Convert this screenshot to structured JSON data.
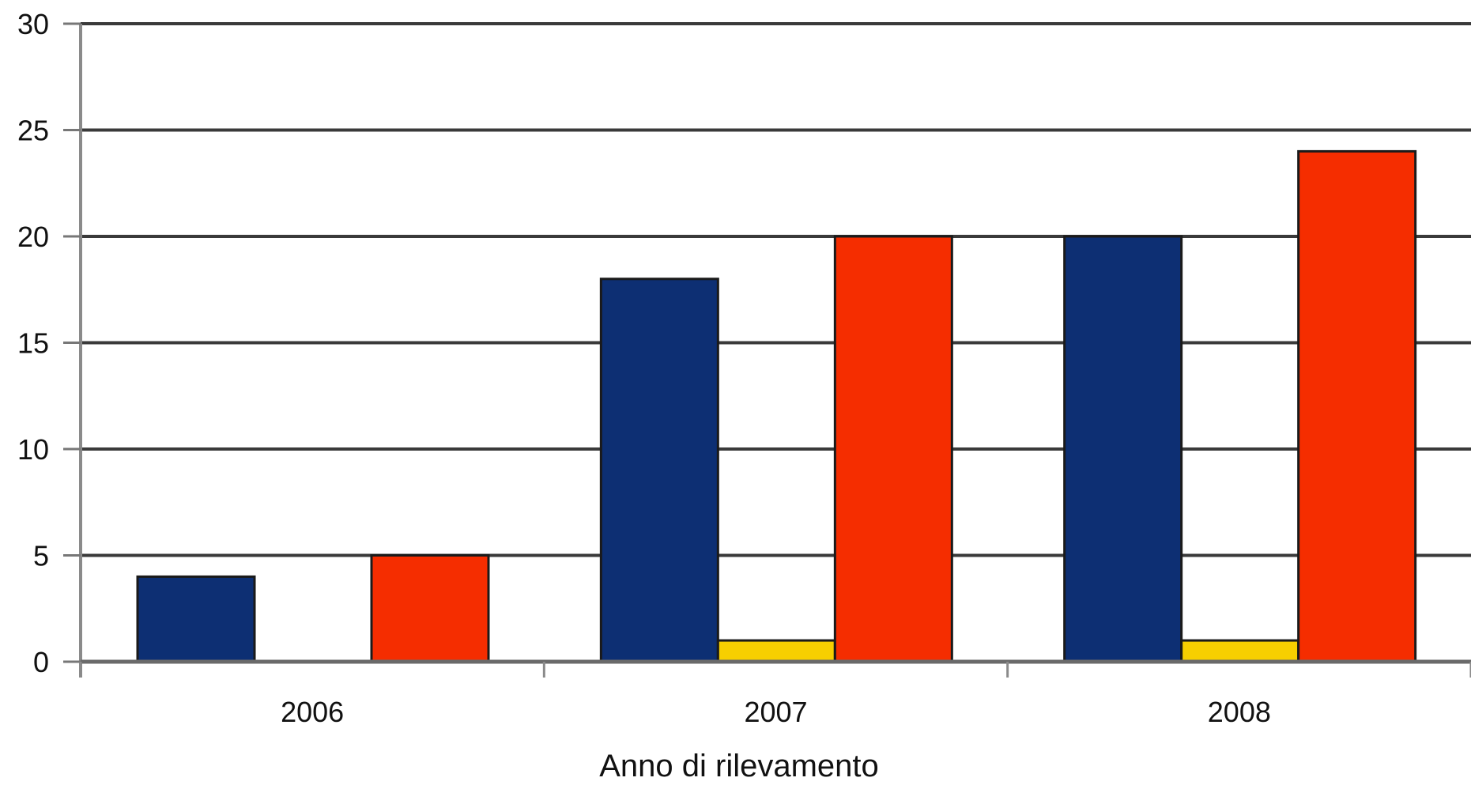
{
  "chart_data": {
    "type": "bar",
    "title": "",
    "xlabel": "Anno di rilevamento",
    "ylabel": "",
    "ylim": [
      0,
      30
    ],
    "yticks": [
      0,
      5,
      10,
      15,
      20,
      25,
      30
    ],
    "categories": [
      "2006",
      "2007",
      "2008"
    ],
    "grid": true,
    "series": [
      {
        "values": [
          4,
          18,
          20
        ],
        "color": "#0d2f73"
      },
      {
        "values": [
          0,
          1,
          1
        ],
        "color": "#f7cf00"
      },
      {
        "values": [
          5,
          20,
          24
        ],
        "color": "#f52d00"
      }
    ]
  }
}
